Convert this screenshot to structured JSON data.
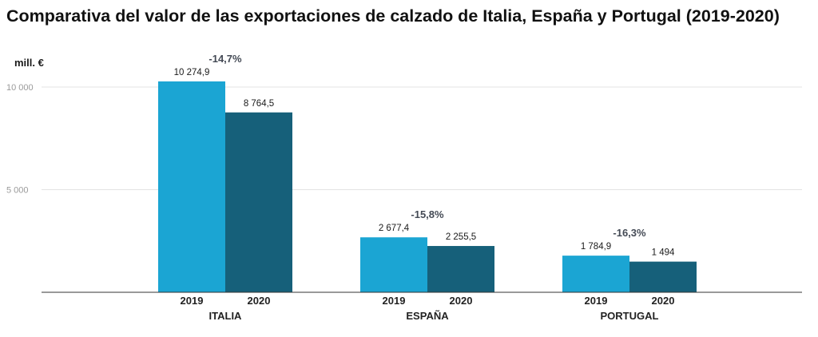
{
  "title": "Comparativa del valor de las exportaciones de calzado de Italia, España y Portugal (2019-2020)",
  "chart_data": {
    "type": "bar",
    "title": "Comparativa del valor de las exportaciones de calzado de Italia, España y Portugal (2019-2020)",
    "ylabel": "mill. €",
    "xlabel": "",
    "ylim": [
      0,
      10000
    ],
    "yticks": [
      {
        "value": 5000,
        "label": "5 000"
      },
      {
        "value": 10000,
        "label": "10 000"
      }
    ],
    "grid": true,
    "categories": [
      "ITALIA",
      "ESPAÑA",
      "PORTUGAL"
    ],
    "series": [
      {
        "name": "2019",
        "color": "#1ba5d3",
        "values": [
          10274.9,
          2677.4,
          1784.9
        ],
        "labels": [
          "10 274,9",
          "2 677,4",
          "1 784,9"
        ]
      },
      {
        "name": "2020",
        "color": "#16607a",
        "values": [
          8764.5,
          2255.5,
          1494
        ],
        "labels": [
          "8 764,5",
          "2 255,5",
          "1 494"
        ]
      }
    ],
    "changes": [
      "-14,7%",
      "-15,8%",
      "-16,3%"
    ]
  }
}
